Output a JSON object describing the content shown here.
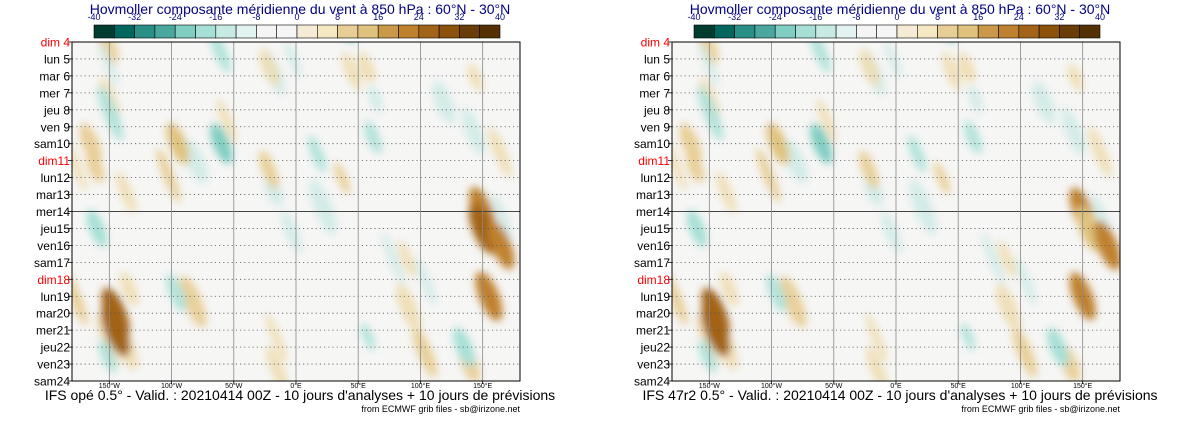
{
  "panels": [
    {
      "title": "Hovmoller composante méridienne du vent à 850 hPa : 60°N - 30°N",
      "footer": "IFS opé 0.5° - Valid. : 20210414 00Z - 10 jours d'analyses + 10 jours de prévisions",
      "credit": "from ECMWF grib files - sb@irizone.net"
    },
    {
      "title": "Hovmoller composante méridienne du vent à 850 hPa : 60°N - 30°N",
      "footer": "IFS 47r2 0.5° - Valid. : 20210414 00Z - 10 jours d'analyses + 10 jours de prévisions",
      "credit": "from ECMWF grib files - sb@irizone.net"
    }
  ],
  "chart_data": [
    {
      "type": "heatmap",
      "title": "Hovmoller composante méridienne du vent à 850 hPa : 60°N - 30°N",
      "variable": "meridional wind component at 850 hPa",
      "colorbar": {
        "ticks": [
          -40,
          -32,
          -24,
          -16,
          -8,
          0,
          8,
          16,
          24,
          32,
          40
        ],
        "colors": [
          "#003c30",
          "#01665e",
          "#2a8f87",
          "#4aa79f",
          "#80cdc1",
          "#a6dfd6",
          "#c7eae5",
          "#e3f3f1",
          "#f5f5f5",
          "#f6f6f6",
          "#f6ecd6",
          "#f6e8c3",
          "#e8ce96",
          "#dfc27d",
          "#c99849",
          "#bf812d",
          "#a36319",
          "#8c510a",
          "#6a3c07",
          "#543005"
        ]
      },
      "x_ticks": [
        "150°W",
        "100°W",
        "50°W",
        "0°E",
        "50°E",
        "100°E",
        "150°E"
      ],
      "x_values": [
        -150,
        -100,
        -50,
        0,
        50,
        100,
        150
      ],
      "xlim": [
        -180,
        180
      ],
      "y_labels": [
        "dim 4",
        "lun 5",
        "mar 6",
        "mer 7",
        "jeu 8",
        "ven 9",
        "sam10",
        "dim11",
        "lun12",
        "mar13",
        "mer14",
        "jeu15",
        "ven16",
        "sam17",
        "dim18",
        "lun19",
        "mar20",
        "mer21",
        "jeu22",
        "ven23",
        "sam24"
      ],
      "sunday_labels": [
        "dim 4",
        "dim11",
        "dim18"
      ],
      "sunday_color": "#ff0000",
      "analysis_forecast_boundary": "mer14",
      "features": [
        {
          "type": "positive",
          "lon": -145,
          "day": "mar20",
          "value": 28
        },
        {
          "type": "positive",
          "lon": -145,
          "day": "mer21",
          "value": 30
        },
        {
          "type": "positive",
          "lon": 150,
          "day": "mer14",
          "value": 26
        },
        {
          "type": "positive",
          "lon": 150,
          "day": "jeu15",
          "value": 28
        },
        {
          "type": "positive",
          "lon": 165,
          "day": "ven16",
          "value": 24
        },
        {
          "type": "positive",
          "lon": 155,
          "day": "lun19",
          "value": 26
        },
        {
          "type": "positive",
          "lon": -95,
          "day": "sam10",
          "value": 16
        },
        {
          "type": "positive",
          "lon": -165,
          "day": "sam10",
          "value": 14
        },
        {
          "type": "negative",
          "lon": -60,
          "day": "sam10",
          "value": -14
        },
        {
          "type": "negative",
          "lon": 40,
          "day": "jeu8",
          "value": -10
        },
        {
          "type": "negative",
          "lon": 135,
          "day": "jeu22",
          "value": -12
        },
        {
          "type": "negative",
          "lon": -160,
          "day": "jeu15",
          "value": -10
        }
      ]
    },
    {
      "type": "heatmap",
      "title": "Hovmoller composante méridienne du vent à 850 hPa : 60°N - 30°N",
      "variable": "meridional wind component at 850 hPa",
      "colorbar": {
        "ticks": [
          -40,
          -32,
          -24,
          -16,
          -8,
          0,
          8,
          16,
          24,
          32,
          40
        ],
        "colors": [
          "#003c30",
          "#01665e",
          "#2a8f87",
          "#4aa79f",
          "#80cdc1",
          "#a6dfd6",
          "#c7eae5",
          "#e3f3f1",
          "#f5f5f5",
          "#f6f6f6",
          "#f6ecd6",
          "#f6e8c3",
          "#e8ce96",
          "#dfc27d",
          "#c99849",
          "#bf812d",
          "#a36319",
          "#8c510a",
          "#6a3c07",
          "#543005"
        ]
      },
      "x_ticks": [
        "150°W",
        "100°W",
        "50°W",
        "0°E",
        "50°E",
        "100°E",
        "150°E"
      ],
      "x_values": [
        -150,
        -100,
        -50,
        0,
        50,
        100,
        150
      ],
      "xlim": [
        -180,
        180
      ],
      "y_labels": [
        "dim 4",
        "lun 5",
        "mar 6",
        "mer 7",
        "jeu 8",
        "ven 9",
        "sam10",
        "dim11",
        "lun12",
        "mar13",
        "mer14",
        "jeu15",
        "ven16",
        "sam17",
        "dim18",
        "lun19",
        "mar20",
        "mer21",
        "jeu22",
        "ven23",
        "sam24"
      ],
      "sunday_labels": [
        "dim 4",
        "dim11",
        "dim18"
      ],
      "sunday_color": "#ff0000",
      "analysis_forecast_boundary": "mer14",
      "features": [
        {
          "type": "positive",
          "lon": -145,
          "day": "mar20",
          "value": 28
        },
        {
          "type": "positive",
          "lon": -145,
          "day": "mer21",
          "value": 30
        },
        {
          "type": "positive",
          "lon": 150,
          "day": "mer14",
          "value": 24
        },
        {
          "type": "positive",
          "lon": 155,
          "day": "jeu15",
          "value": 22
        },
        {
          "type": "positive",
          "lon": 170,
          "day": "ven16",
          "value": 26
        },
        {
          "type": "positive",
          "lon": 150,
          "day": "lun19",
          "value": 24
        },
        {
          "type": "positive",
          "lon": -95,
          "day": "sam10",
          "value": 16
        },
        {
          "type": "positive",
          "lon": -165,
          "day": "sam10",
          "value": 14
        },
        {
          "type": "negative",
          "lon": -60,
          "day": "sam10",
          "value": -14
        },
        {
          "type": "negative",
          "lon": 40,
          "day": "jeu8",
          "value": -10
        },
        {
          "type": "negative",
          "lon": 130,
          "day": "jeu22",
          "value": -12
        },
        {
          "type": "negative",
          "lon": -160,
          "day": "jeu15",
          "value": -10
        }
      ]
    }
  ]
}
